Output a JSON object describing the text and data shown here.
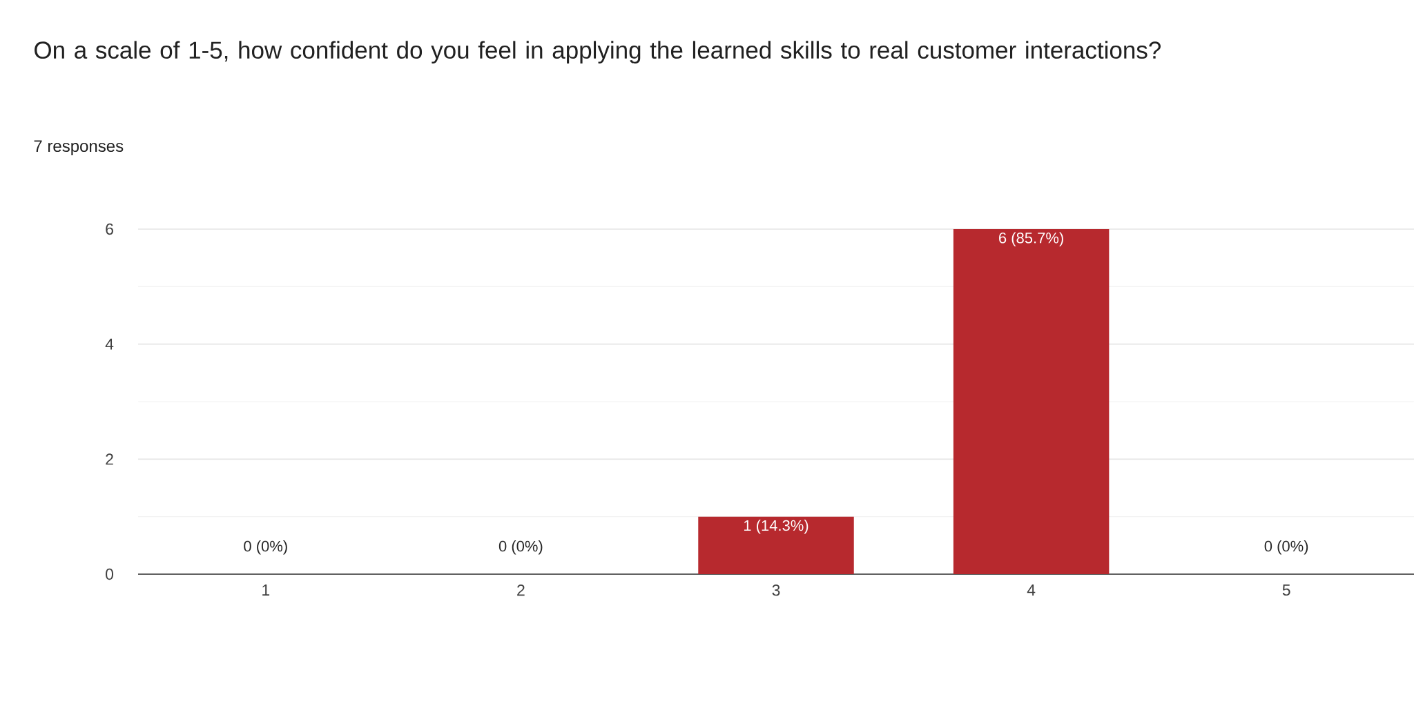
{
  "chart_data": {
    "type": "bar",
    "title": "On a scale of 1-5, how confident do you feel in applying the learned skills to real customer interactions?",
    "subtitle": "7 responses",
    "categories": [
      "1",
      "2",
      "3",
      "4",
      "5"
    ],
    "values": [
      0,
      0,
      1,
      6,
      0
    ],
    "value_labels": [
      "0 (0%)",
      "0 (0%)",
      "1 (14.3%)",
      "6 (85.7%)",
      "0 (0%)"
    ],
    "color": "#b7292e",
    "ylim": [
      0,
      6
    ],
    "yticks": [
      0,
      2,
      4,
      6
    ],
    "grid": "y"
  }
}
